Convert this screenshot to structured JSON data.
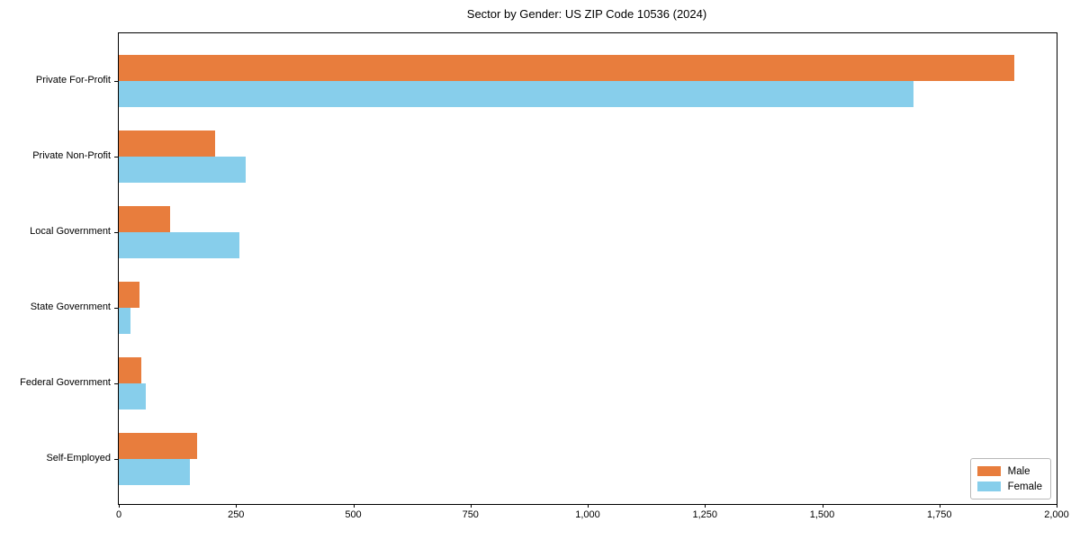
{
  "chart_data": {
    "type": "bar",
    "orientation": "horizontal",
    "title": "Sector by Gender: US ZIP Code 10536 (2024)",
    "categories": [
      "Private For-Profit",
      "Private Non-Profit",
      "Local Government",
      "State Government",
      "Federal Government",
      "Self-Employed"
    ],
    "series": [
      {
        "name": "Male",
        "color": "#e87d3d",
        "values": [
          1910,
          205,
          110,
          45,
          48,
          167
        ]
      },
      {
        "name": "Female",
        "color": "#87ceeb",
        "values": [
          1695,
          270,
          258,
          25,
          57,
          152
        ]
      }
    ],
    "xlabel": "",
    "ylabel": "",
    "xlim": [
      0,
      2000
    ],
    "xticks": [
      0,
      250,
      500,
      750,
      1000,
      1250,
      1500,
      1750,
      2000
    ],
    "xtick_labels": [
      "0",
      "250",
      "500",
      "750",
      "1,000",
      "1,250",
      "1,500",
      "1,750",
      "2,000"
    ],
    "grid": false,
    "legend_position": "lower right"
  }
}
